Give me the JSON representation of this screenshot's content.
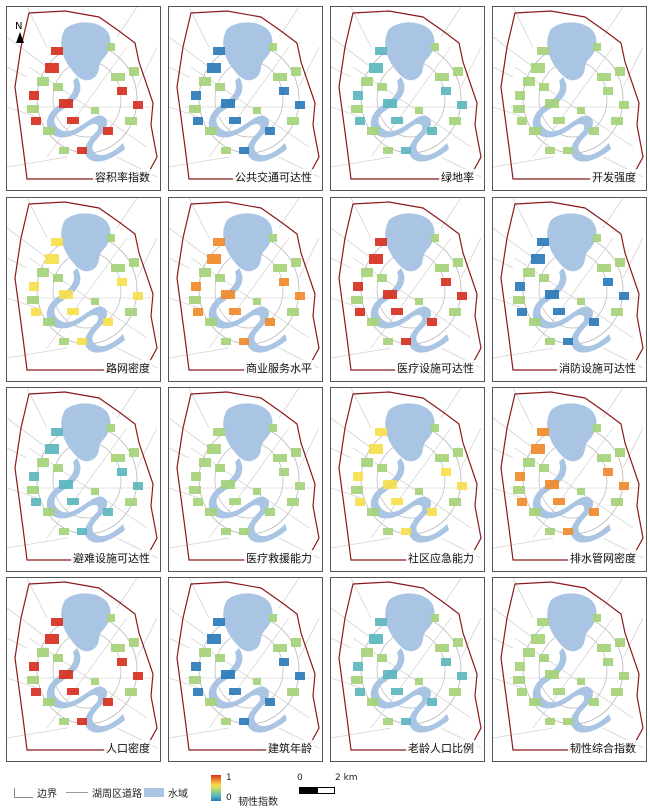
{
  "north_label": "N",
  "colors": {
    "ramp": [
      "#d7301f",
      "#f08a2a",
      "#f6e04c",
      "#a5d27a",
      "#5bb6bd",
      "#2b7bb9"
    ],
    "water": "#a9c5e3",
    "boundary": "#8b1a1a",
    "road": "#b8b8b8"
  },
  "panels": [
    {
      "label": "容积率指数"
    },
    {
      "label": "公共交通可达性"
    },
    {
      "label": "绿地率"
    },
    {
      "label": "开发强度"
    },
    {
      "label": "路网密度"
    },
    {
      "label": "商业服务水平"
    },
    {
      "label": "医疗设施可达性"
    },
    {
      "label": "消防设施可达性"
    },
    {
      "label": "避难设施可达性"
    },
    {
      "label": "医疗救援能力"
    },
    {
      "label": "社区应急能力"
    },
    {
      "label": "排水管网密度"
    },
    {
      "label": "人口密度"
    },
    {
      "label": "建筑年龄"
    },
    {
      "label": "老龄人口比例"
    },
    {
      "label": "韧性综合指数"
    }
  ],
  "legend": {
    "boundary": "边界",
    "road": "湖周区道路",
    "water": "水域",
    "ramp_high": "1",
    "ramp_low": "0",
    "index_label": "韧性指数",
    "scale_zero": "0",
    "scale_max": "2 km"
  }
}
